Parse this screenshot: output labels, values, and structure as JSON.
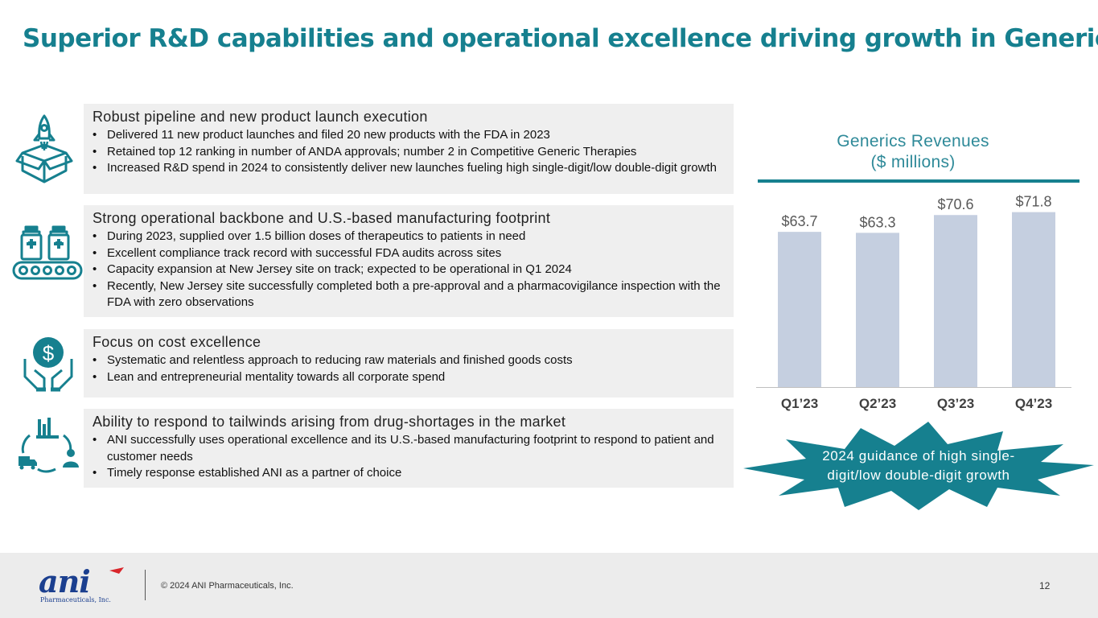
{
  "title": "Superior R&D capabilities and operational excellence driving growth in Generics",
  "sections": [
    {
      "heading": "Robust pipeline and new product launch execution",
      "icon": "rocket-launch-box-icon",
      "bullets": [
        "Delivered 11 new product launches and filed 20 new products with the FDA in 2023",
        "Retained top 12 ranking in number of ANDA approvals; number 2 in Competitive Generic Therapies",
        "Increased R&D spend in 2024 to consistently deliver new launches fueling high single-digit/low double-digit growth"
      ]
    },
    {
      "heading": "Strong operational backbone and U.S.-based manufacturing footprint",
      "icon": "medicine-conveyor-icon",
      "bullets": [
        "During 2023, supplied over 1.5 billion doses of therapeutics to patients in need",
        "Excellent compliance track record with successful FDA audits across sites",
        "Capacity expansion at New Jersey site on track; expected to be operational in Q1 2024",
        "Recently, New Jersey site successfully completed both a pre-approval and a pharmacovigilance inspection with the FDA with zero observations"
      ]
    },
    {
      "heading": "Focus on cost excellence",
      "icon": "hands-dollar-icon",
      "bullets": [
        "Systematic and relentless approach to reducing raw materials and finished goods costs",
        "Lean and entrepreneurial mentality towards all corporate spend"
      ]
    },
    {
      "heading": "Ability to respond to tailwinds arising from drug-shortages in the market",
      "icon": "supply-cycle-icon",
      "bullets": [
        "ANI successfully uses operational excellence and its U.S.-based manufacturing footprint to respond to patient and customer needs",
        "Timely response established ANI as a partner of choice"
      ]
    }
  ],
  "chart_data": {
    "type": "bar",
    "title": "Generics Revenues ($ millions)",
    "title_lines": [
      "Generics Revenues",
      "($ millions)"
    ],
    "categories": [
      "Q1’23",
      "Q2’23",
      "Q3’23",
      "Q4’23"
    ],
    "values": [
      63.7,
      63.3,
      70.6,
      71.8
    ],
    "value_labels": [
      "$63.7",
      "$63.3",
      "$70.6",
      "$71.8"
    ],
    "xlabel": "",
    "ylabel": "",
    "ylim": [
      0,
      72
    ],
    "grid": false,
    "bar_color": "#c5cfe0"
  },
  "guidance": "2024 guidance of high single-digit/low double-digit growth",
  "footer": {
    "logo_text": "ani",
    "logo_subtext": "Pharmaceuticals, Inc.",
    "copyright": "© 2024 ANI Pharmaceuticals, Inc.",
    "page_number": "12"
  },
  "colors": {
    "accent": "#16808f",
    "panel": "#efefef",
    "footer": "#ececec",
    "bar": "#c5cfe0",
    "logo": "#1b3f8f"
  }
}
